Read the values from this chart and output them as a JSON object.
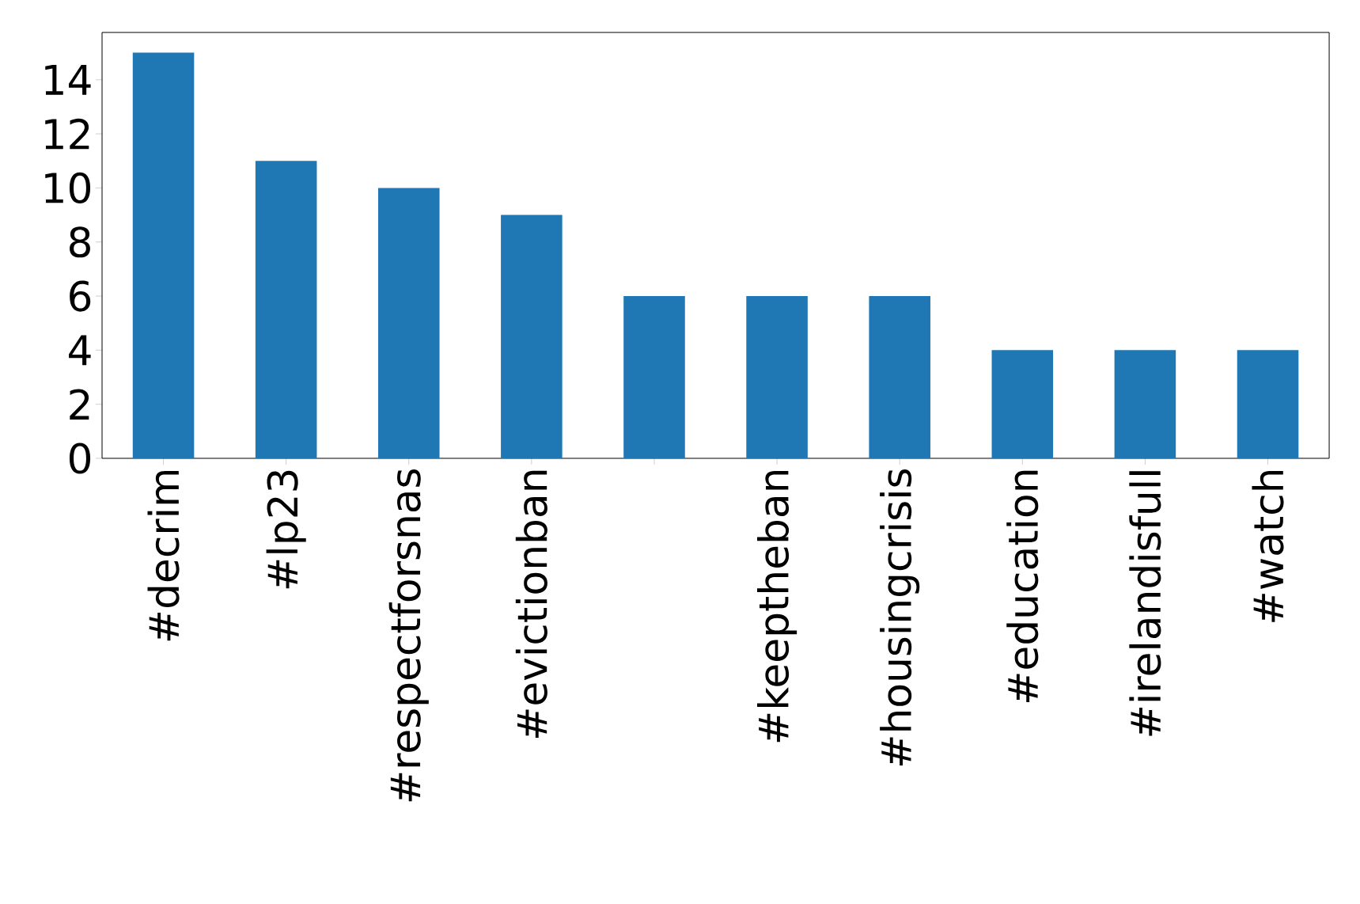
{
  "chart_data": {
    "type": "bar",
    "categories": [
      "#decrim",
      "#lp23",
      "#respectforsnas",
      "#evictionban",
      null,
      "#keeptheban",
      "#housingcrisis",
      "#education",
      "#irelandisfull",
      "#watch"
    ],
    "values": [
      15,
      11,
      10,
      9,
      6,
      6,
      6,
      4,
      4,
      4
    ],
    "color": "#1f77b4",
    "ylim": [
      0,
      15.75
    ],
    "yticks": [
      0,
      2,
      4,
      6,
      8,
      10,
      12,
      14
    ]
  }
}
